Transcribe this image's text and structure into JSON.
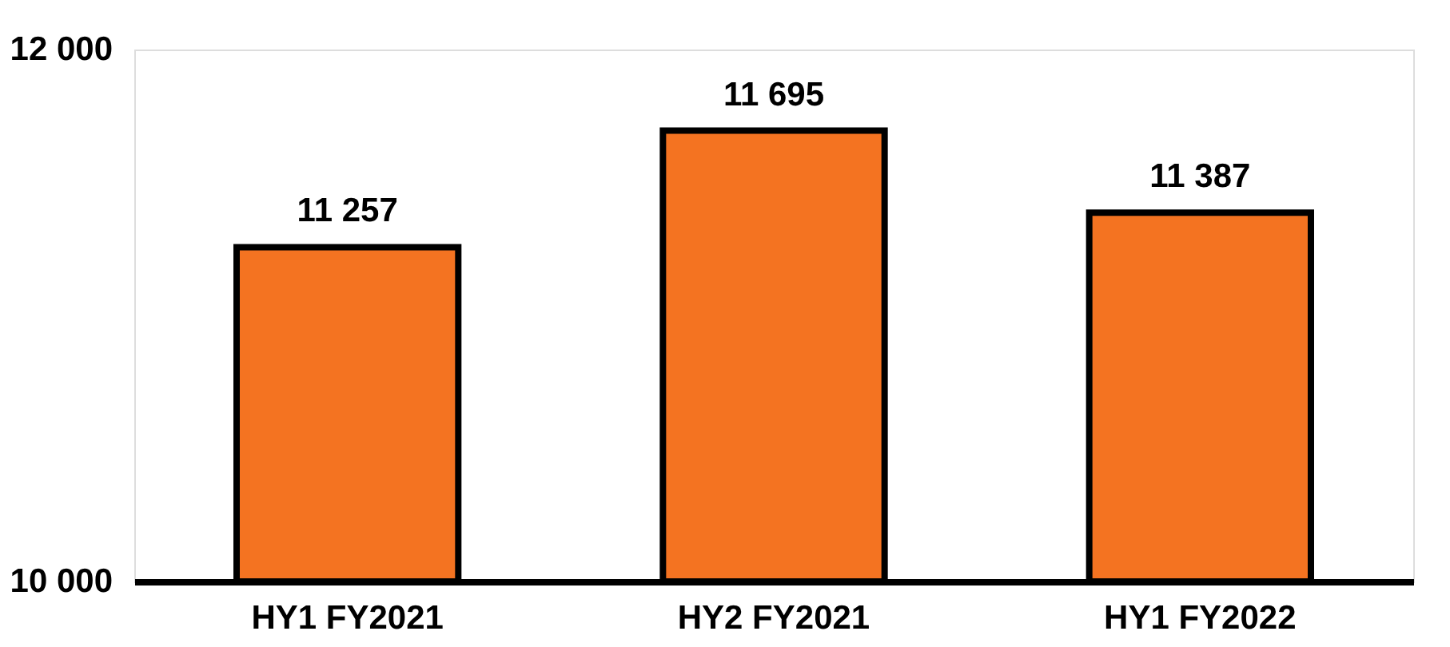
{
  "chart_data": {
    "type": "bar",
    "categories": [
      "HY1 FY2021",
      "HY2 FY2021",
      "HY1 FY2022"
    ],
    "values": [
      11257,
      11695,
      11387
    ],
    "value_labels": [
      "11 257",
      "11 695",
      "11 387"
    ],
    "color": "#f47321",
    "ylim": [
      10000,
      12000
    ],
    "yticks": [
      {
        "value": 10000,
        "label": "10 000"
      },
      {
        "value": 12000,
        "label": "12 000"
      }
    ],
    "grid": false
  }
}
